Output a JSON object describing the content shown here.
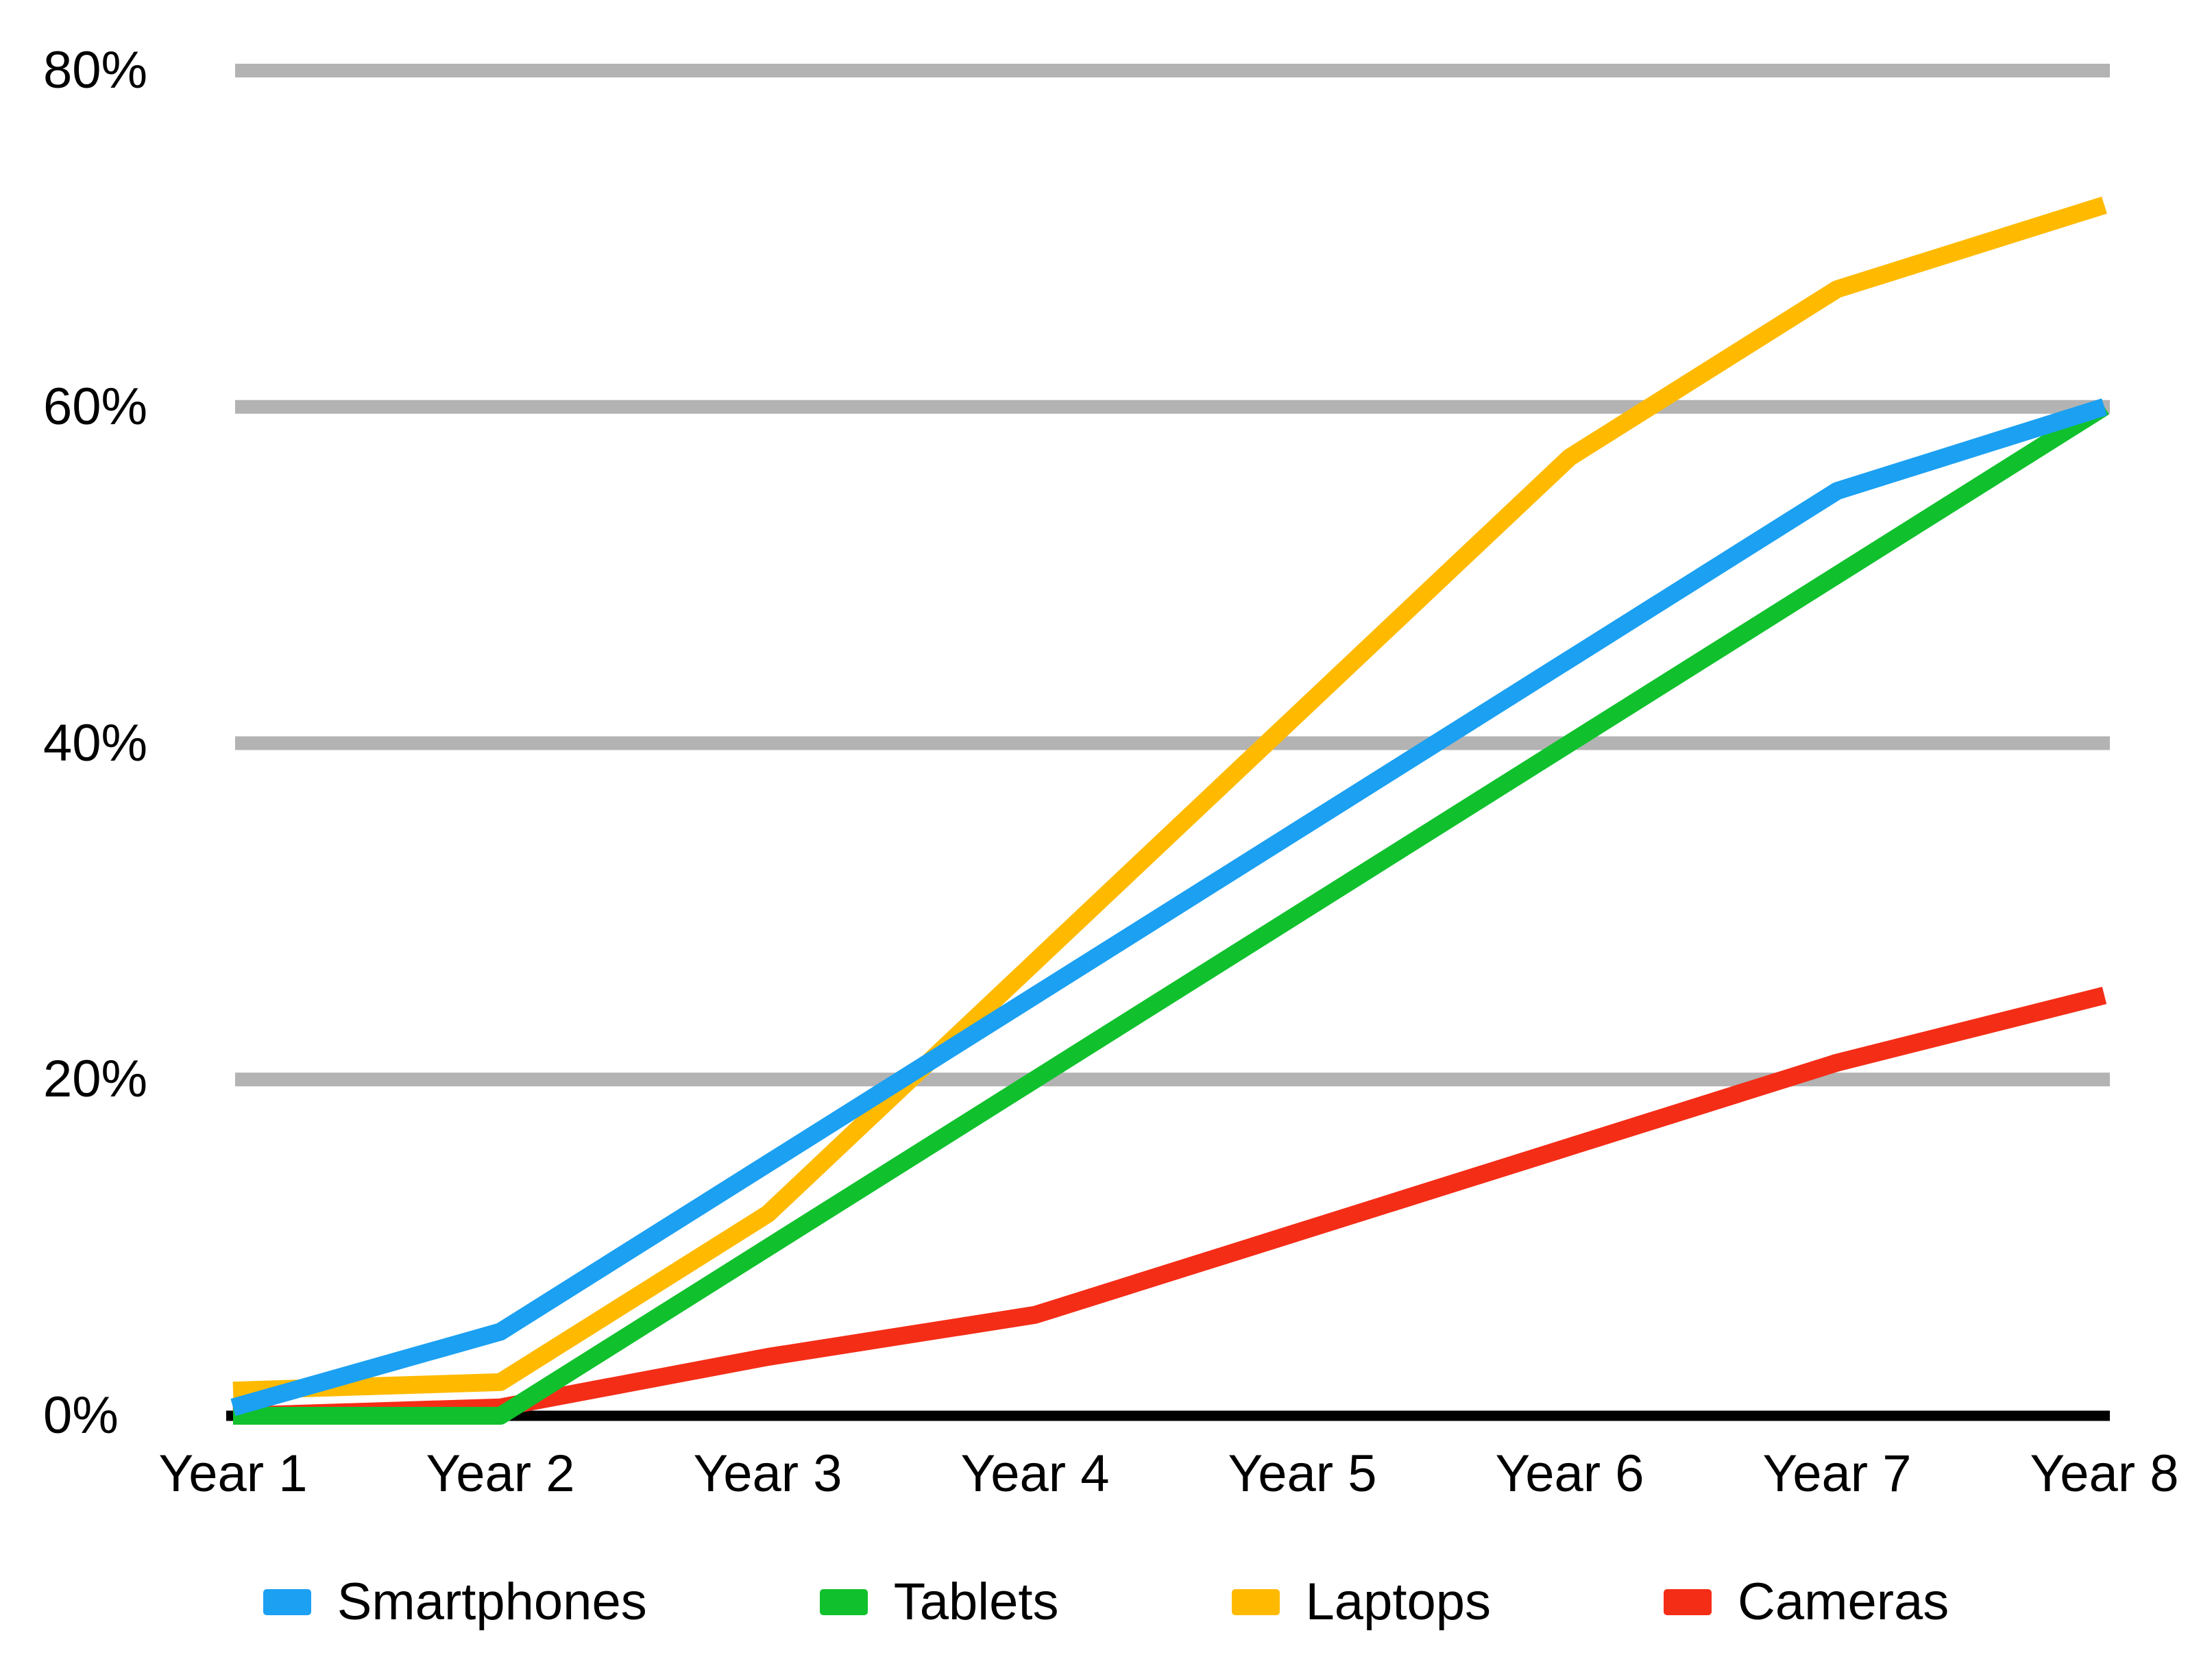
{
  "page": {
    "background_color": "#FFFFFF",
    "text_color": "#000000"
  },
  "chart_data": {
    "type": "line",
    "title": "",
    "categories": [
      "Year 1",
      "Year 2",
      "Year 3",
      "Year 4",
      "Year 5",
      "Year 6",
      "Year 7",
      "Year 8"
    ],
    "series": [
      {
        "name": "Smartphones",
        "color": "#1BA0F2",
        "values": [
          0.5,
          5,
          15,
          25,
          35,
          45,
          55,
          60
        ]
      },
      {
        "name": "Tablets",
        "color": "#10C12D",
        "values": [
          0,
          0,
          10,
          20,
          30,
          40,
          50,
          60
        ]
      },
      {
        "name": "Laptops",
        "color": "#FFBA00",
        "values": [
          1.5,
          2,
          12,
          27,
          42,
          57,
          67,
          72
        ]
      },
      {
        "name": "Cameras",
        "color": "#F42D17",
        "values": [
          0,
          0.5,
          3.5,
          6,
          11,
          16,
          21,
          25
        ]
      }
    ],
    "ylim": [
      0,
      80
    ],
    "yticks": [
      {
        "value": 0,
        "label": "0%"
      },
      {
        "value": 20,
        "label": "20%"
      },
      {
        "value": 40,
        "label": "40%"
      },
      {
        "value": 60,
        "label": "60%"
      },
      {
        "value": 80,
        "label": "80%"
      }
    ],
    "grid": "horizontal-only",
    "gridline_color": "#B3B3B3",
    "axis_color": "#000000",
    "legend_position": "bottom",
    "draw_order": [
      "Cameras",
      "Laptops",
      "Tablets",
      "Smartphones"
    ],
    "line_width": 26,
    "gridline_width": 20,
    "axis_width": 15
  }
}
